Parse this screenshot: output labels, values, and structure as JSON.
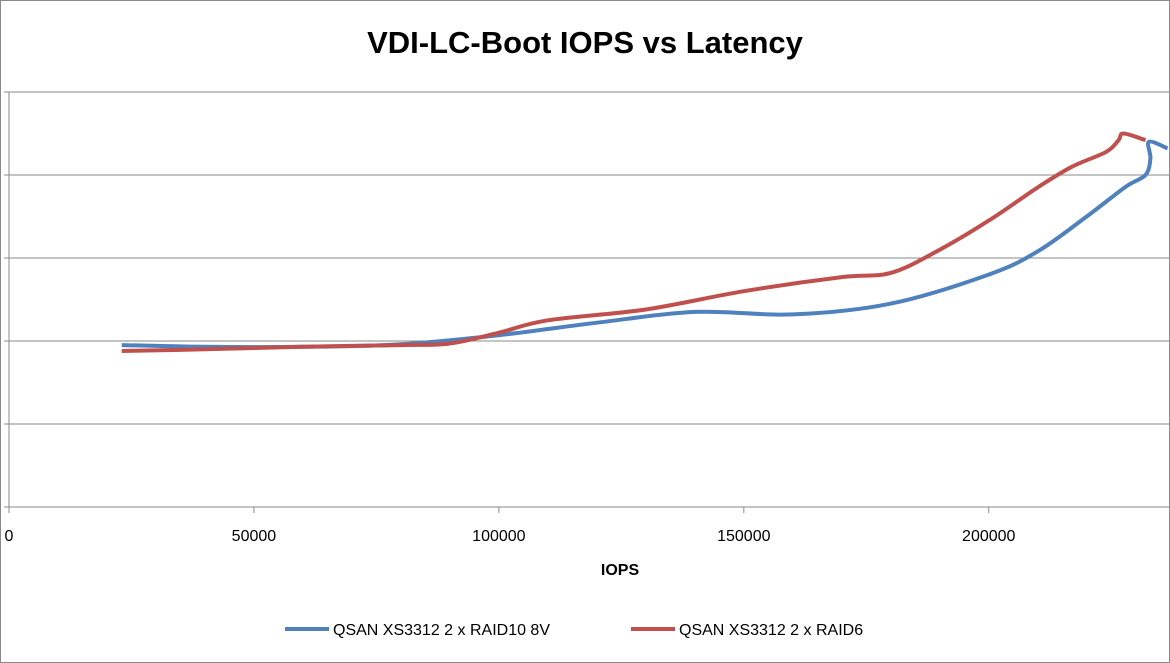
{
  "chart_data": {
    "type": "line",
    "title": "VDI-LC-Boot IOPS vs Latency",
    "xlabel": "IOPS",
    "ylabel": "",
    "xlim": [
      0,
      237000
    ],
    "ylim": [
      0,
      5
    ],
    "x_ticks": [
      0,
      50000,
      100000,
      150000,
      200000
    ],
    "x_tick_labels": [
      "0",
      "50000",
      "100000",
      "150000",
      "200000"
    ],
    "y_gridlines": [
      1,
      2,
      3,
      4,
      5
    ],
    "y_tick_labels_visible": false,
    "grid": true,
    "legend_position": "bottom",
    "series": [
      {
        "name": "QSAN XS3312 2 x RAID10 8V",
        "color": "#4F81BD",
        "points": [
          [
            23000,
            1.95
          ],
          [
            40000,
            1.93
          ],
          [
            60000,
            1.93
          ],
          [
            80000,
            1.96
          ],
          [
            100000,
            2.07
          ],
          [
            120000,
            2.22
          ],
          [
            140000,
            2.35
          ],
          [
            160000,
            2.32
          ],
          [
            180000,
            2.45
          ],
          [
            200000,
            2.8
          ],
          [
            210000,
            3.08
          ],
          [
            220000,
            3.5
          ],
          [
            228000,
            3.86
          ],
          [
            232000,
            4.0
          ],
          [
            233000,
            4.2
          ],
          [
            232700,
            4.4
          ],
          [
            236500,
            4.32
          ]
        ]
      },
      {
        "name": "QSAN XS3312 2 x RAID6",
        "color": "#C0504D",
        "points": [
          [
            23000,
            1.88
          ],
          [
            40000,
            1.9
          ],
          [
            60000,
            1.93
          ],
          [
            80000,
            1.95
          ],
          [
            90000,
            1.97
          ],
          [
            100000,
            2.1
          ],
          [
            110000,
            2.25
          ],
          [
            130000,
            2.38
          ],
          [
            150000,
            2.6
          ],
          [
            170000,
            2.77
          ],
          [
            180000,
            2.82
          ],
          [
            190000,
            3.1
          ],
          [
            200000,
            3.45
          ],
          [
            210000,
            3.85
          ],
          [
            217000,
            4.1
          ],
          [
            224000,
            4.28
          ],
          [
            226500,
            4.42
          ],
          [
            227500,
            4.5
          ],
          [
            232000,
            4.42
          ]
        ]
      }
    ]
  }
}
